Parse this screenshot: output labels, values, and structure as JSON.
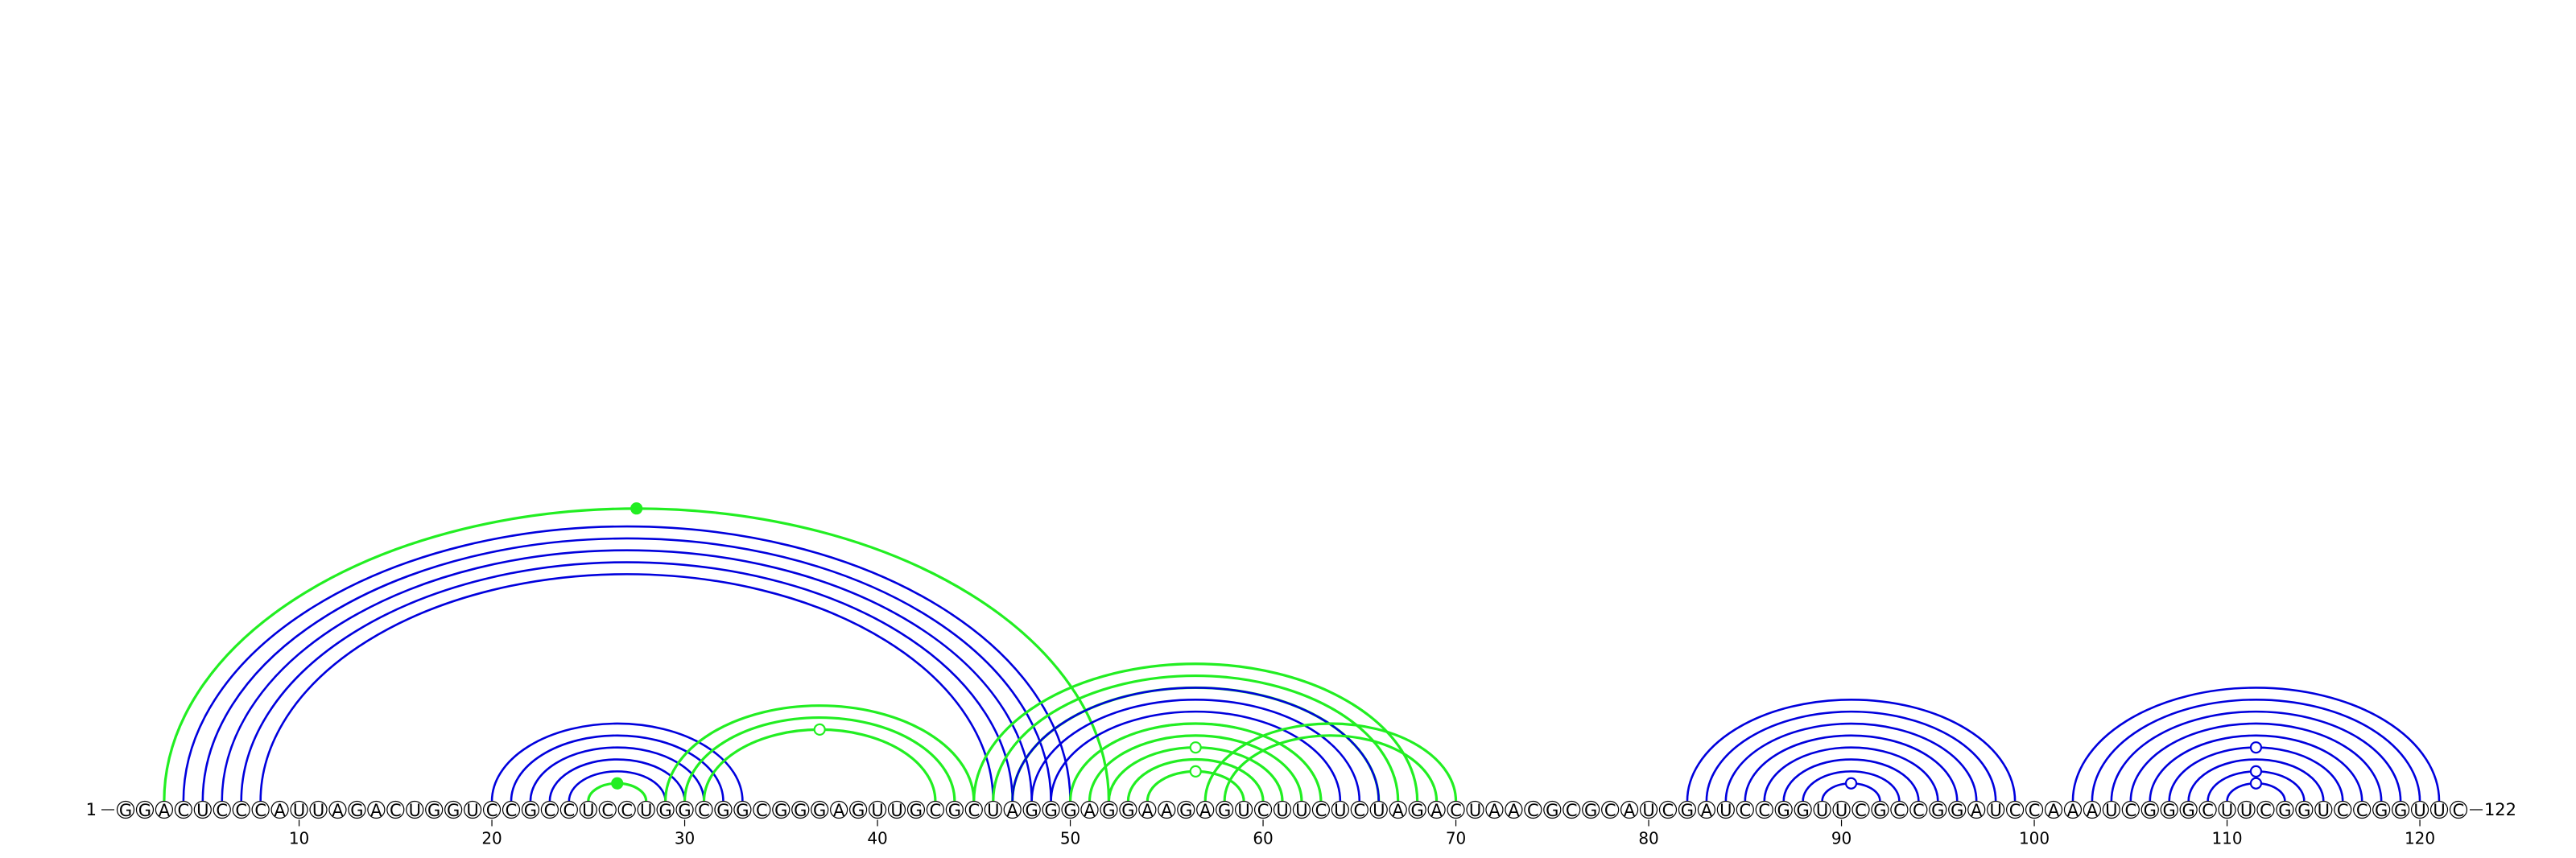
{
  "diagram": {
    "type": "rna-arc-diagram",
    "sequence": "GGACUCCCAUUAGACUGGUCCGCCUCCUGGCGGCGGGAGUUGCGCUAGGGAGGAAGAGUCUUCUCUAGACUAACGCGCAUCGAUCCGGUUCGCCGGAUCCAAAUCGGGCUUCGGUCCGGUUC",
    "start_label": "1",
    "end_label": "122",
    "ticks": [
      10,
      20,
      30,
      40,
      50,
      60,
      70,
      80,
      90,
      100,
      110,
      120
    ],
    "colors": {
      "blue": "#0000dd",
      "green": "#22ee22"
    },
    "stems": [
      {
        "color": "blue",
        "pairs": [
          [
            4,
            50
          ],
          [
            5,
            49
          ],
          [
            6,
            48
          ],
          [
            7,
            47
          ],
          [
            8,
            46
          ]
        ]
      },
      {
        "color": "green",
        "pairs": [
          [
            3,
            52
          ]
        ],
        "marker": "filled"
      },
      {
        "color": "blue",
        "pairs": [
          [
            20,
            33
          ],
          [
            21,
            32
          ],
          [
            22,
            31
          ],
          [
            23,
            30
          ],
          [
            24,
            29
          ]
        ]
      },
      {
        "color": "green",
        "pairs": [
          [
            25,
            28
          ]
        ],
        "marker": "filled"
      },
      {
        "color": "green",
        "pairs": [
          [
            29,
            45
          ],
          [
            30,
            44
          ],
          [
            31,
            43
          ]
        ],
        "marker": "open"
      },
      {
        "color": "green",
        "pairs": [
          [
            45,
            68
          ],
          [
            46,
            67
          ],
          [
            47,
            66
          ]
        ]
      },
      {
        "color": "blue",
        "pairs": [
          [
            47,
            66
          ],
          [
            48,
            65
          ],
          [
            49,
            64
          ],
          [
            50,
            63
          ]
        ]
      },
      {
        "color": "green",
        "pairs": [
          [
            50,
            63
          ],
          [
            51,
            62
          ],
          [
            52,
            61
          ]
        ],
        "marker": "open"
      },
      {
        "color": "green",
        "pairs": [
          [
            53,
            60
          ],
          [
            54,
            59
          ]
        ],
        "marker": "open"
      },
      {
        "color": "green",
        "pairs": [
          [
            57,
            70
          ],
          [
            58,
            69
          ]
        ]
      },
      {
        "color": "blue",
        "pairs": [
          [
            82,
            99
          ],
          [
            83,
            98
          ],
          [
            84,
            97
          ],
          [
            85,
            96
          ],
          [
            86,
            95
          ],
          [
            87,
            94
          ],
          [
            88,
            93
          ],
          [
            89,
            92
          ]
        ],
        "marker": "open"
      },
      {
        "color": "blue",
        "pairs": [
          [
            102,
            121
          ],
          [
            103,
            120
          ],
          [
            104,
            119
          ],
          [
            105,
            118
          ],
          [
            106,
            117
          ],
          [
            107,
            116
          ]
        ],
        "marker": "open"
      },
      {
        "color": "blue",
        "pairs": [
          [
            108,
            115
          ],
          [
            109,
            114
          ]
        ],
        "marker": "open"
      },
      {
        "color": "blue",
        "pairs": [
          [
            110,
            113
          ]
        ],
        "marker": "open"
      }
    ]
  }
}
